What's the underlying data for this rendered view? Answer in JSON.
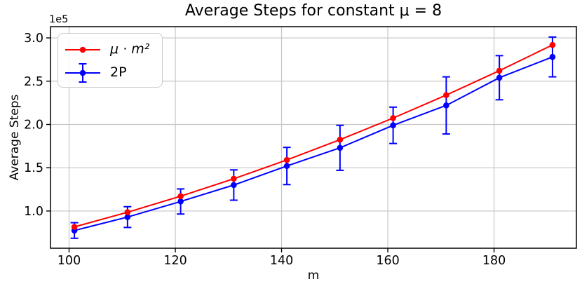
{
  "chart_data": {
    "type": "line",
    "title": "Average Steps for constant μ = 8",
    "xlabel": "m",
    "ylabel": "Average Steps",
    "y_offset_text": "1e5",
    "x": [
      101,
      111,
      121,
      131,
      141,
      151,
      161,
      171,
      181,
      191
    ],
    "series": [
      {
        "name": "μ · m²",
        "color": "#ff0000",
        "marker": "circle",
        "values": [
          81608,
          98568,
          117128,
          137288,
          159048,
          182408,
          207368,
          233928,
          262088,
          291848
        ],
        "errors": null
      },
      {
        "name": "2P",
        "color": "#0000ff",
        "marker": "circle-errorbar",
        "values": [
          77500,
          93000,
          111000,
          130000,
          152000,
          173000,
          199000,
          222000,
          254000,
          278000
        ],
        "errors": [
          9000,
          12000,
          14500,
          17500,
          21500,
          26000,
          21000,
          33000,
          25500,
          23000
        ]
      }
    ],
    "xlim": [
      96.5,
      195.5
    ],
    "ylim": [
      57000,
      313000
    ],
    "xticks": {
      "values": [
        100,
        120,
        140,
        160,
        180
      ],
      "labels": [
        "100",
        "120",
        "140",
        "160",
        "180"
      ]
    },
    "yticks": {
      "values": [
        100000,
        150000,
        200000,
        250000,
        300000
      ],
      "labels": [
        "1.0",
        "1.5",
        "2.0",
        "2.5",
        "3.0"
      ]
    },
    "grid": true,
    "grid_color": "#c6c6c6",
    "legend_position": "upper left"
  }
}
